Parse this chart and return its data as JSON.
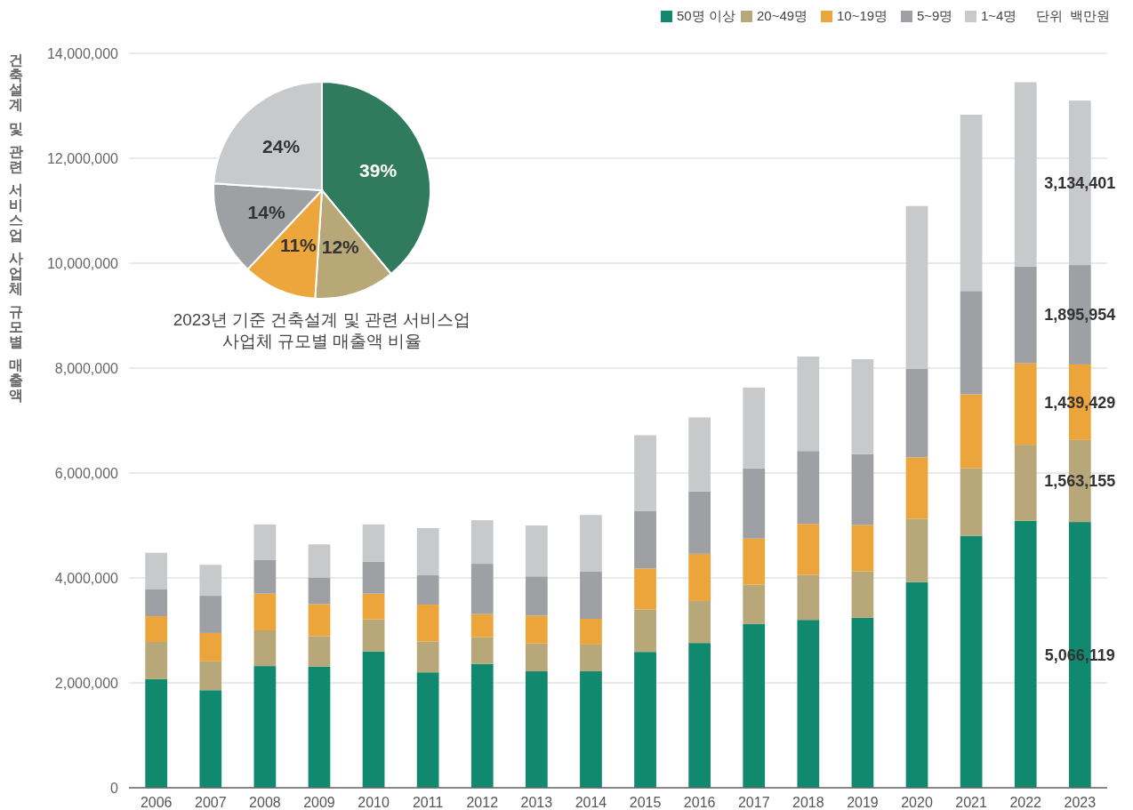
{
  "chart_data": [
    {
      "type": "bar",
      "stacked": true,
      "ylabel": "건축설계 및 관련 서비스업 사업체 규모별 매출액",
      "annotations": [
        "단위  백만원"
      ],
      "legend": "top right",
      "grid": "y",
      "categories": [
        "2006",
        "2007",
        "2008",
        "2009",
        "2010",
        "2011",
        "2012",
        "2013",
        "2014",
        "2015",
        "2016",
        "2017",
        "2018",
        "2019",
        "2020",
        "2021",
        "2022",
        "2023"
      ],
      "ylim": [
        0,
        14000000
      ],
      "yticks": [
        {
          "value": 0,
          "label": "0"
        },
        {
          "value": 2000000,
          "label": "2,000,000"
        },
        {
          "value": 4000000,
          "label": "4,000,000"
        },
        {
          "value": 6000000,
          "label": "6,000,000"
        },
        {
          "value": 8000000,
          "label": "8,000,000"
        },
        {
          "value": 10000000,
          "label": "10,000,000"
        },
        {
          "value": 12000000,
          "label": "12,000,000"
        },
        {
          "value": 14000000,
          "label": "14,000,000"
        }
      ],
      "series": [
        {
          "name": "50명 이상",
          "color": "#10896e",
          "values": [
            2070000,
            1860000,
            2320000,
            2310000,
            2600000,
            2200000,
            2360000,
            2220000,
            2220000,
            2590000,
            2760000,
            3120000,
            3200000,
            3240000,
            3920000,
            4800000,
            5090000,
            5066119
          ],
          "value_labels": [
            null,
            null,
            null,
            null,
            null,
            null,
            null,
            null,
            null,
            null,
            null,
            null,
            null,
            null,
            null,
            null,
            null,
            "5,066,119"
          ]
        },
        {
          "name": "20~49명",
          "color": "#b8a778",
          "values": [
            710000,
            550000,
            680000,
            580000,
            610000,
            590000,
            510000,
            530000,
            510000,
            810000,
            800000,
            750000,
            860000,
            890000,
            1210000,
            1290000,
            1450000,
            1563155
          ],
          "value_labels": [
            null,
            null,
            null,
            null,
            null,
            null,
            null,
            null,
            null,
            null,
            null,
            null,
            null,
            null,
            null,
            null,
            null,
            "1,563,155"
          ]
        },
        {
          "name": "10~19명",
          "color": "#eca53b",
          "values": [
            490000,
            540000,
            700000,
            610000,
            490000,
            700000,
            440000,
            530000,
            490000,
            780000,
            900000,
            880000,
            970000,
            880000,
            1170000,
            1410000,
            1550000,
            1439429
          ],
          "value_labels": [
            null,
            null,
            null,
            null,
            null,
            null,
            null,
            null,
            null,
            null,
            null,
            null,
            null,
            null,
            null,
            null,
            null,
            "1,439,429"
          ]
        },
        {
          "name": "5~9명",
          "color": "#9fa0a4",
          "values": [
            520000,
            710000,
            640000,
            510000,
            610000,
            560000,
            960000,
            750000,
            900000,
            1100000,
            1190000,
            1340000,
            1390000,
            1350000,
            1690000,
            1970000,
            1850000,
            1895954
          ],
          "value_labels": [
            null,
            null,
            null,
            null,
            null,
            null,
            null,
            null,
            null,
            null,
            null,
            null,
            null,
            null,
            null,
            null,
            null,
            "1,895,954"
          ]
        },
        {
          "name": "1~4명",
          "color": "#c8c9cb",
          "values": [
            690000,
            590000,
            680000,
            630000,
            710000,
            900000,
            830000,
            970000,
            1080000,
            1440000,
            1410000,
            1540000,
            1800000,
            1810000,
            3100000,
            3360000,
            3510000,
            3134401
          ],
          "value_labels": [
            null,
            null,
            null,
            null,
            null,
            null,
            null,
            null,
            null,
            null,
            null,
            null,
            null,
            null,
            null,
            null,
            null,
            "3,134,401"
          ]
        }
      ]
    },
    {
      "type": "pie",
      "title": "2023년 기준 건축설계 및 관련 서비스업\n사업체 규모별 매출액 비율",
      "categories": [
        null,
        null,
        null,
        null,
        null
      ],
      "values": [
        39,
        12,
        11,
        14,
        24
      ],
      "colors": [
        "#307a5e",
        "#b8a878",
        "#eca63b",
        "#9fa0a4",
        "#c8c9cb"
      ],
      "value_labels": [
        "39%",
        "12%",
        "11%",
        "14%",
        "24%"
      ]
    }
  ]
}
